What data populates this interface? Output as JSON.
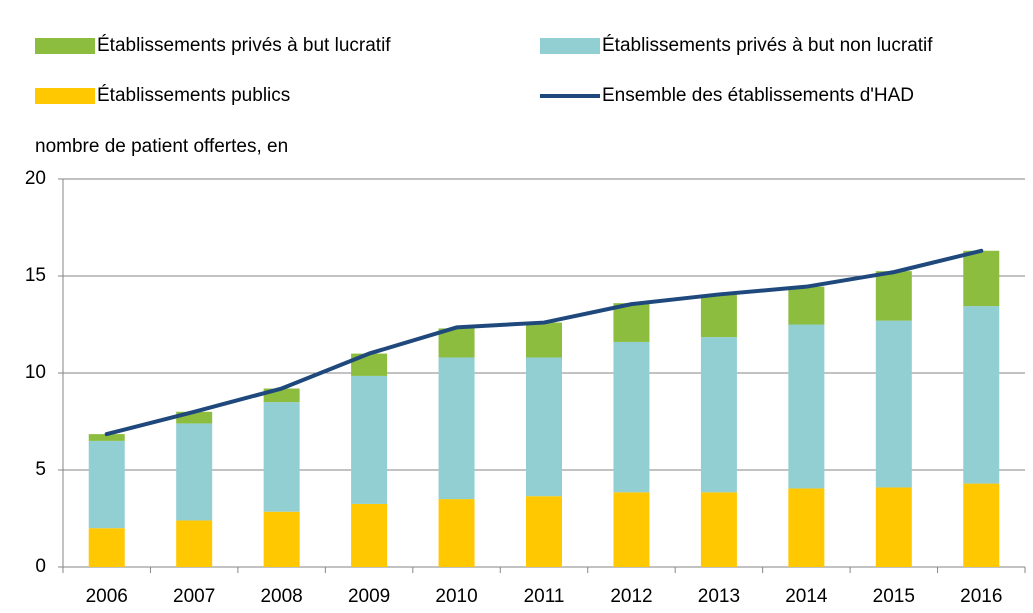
{
  "chart_data": {
    "type": "bar",
    "stacked": true,
    "y_label": "nombre de patient offertes, en",
    "categories": [
      "2006",
      "2007",
      "2008",
      "2009",
      "2010",
      "2011",
      "2012",
      "2013",
      "2014",
      "2015",
      "2016"
    ],
    "series": [
      {
        "name": "Établissements privés à but lucratif",
        "type": "bar",
        "color": "#8cbd3f",
        "values": [
          0.35,
          0.6,
          0.7,
          1.15,
          1.5,
          1.8,
          2.0,
          2.2,
          1.95,
          2.55,
          2.85
        ]
      },
      {
        "name": "Établissements privés à but non lucratif",
        "type": "bar",
        "color": "#92cfd3",
        "values": [
          4.5,
          5.0,
          5.65,
          6.6,
          7.3,
          7.15,
          7.75,
          8.0,
          8.45,
          8.6,
          9.15
        ]
      },
      {
        "name": "Établissements publics",
        "type": "bar",
        "color": "#ffc800",
        "values": [
          2.0,
          2.4,
          2.85,
          3.25,
          3.5,
          3.65,
          3.85,
          3.85,
          4.05,
          4.1,
          4.3
        ]
      },
      {
        "name": "Ensemble des établissements d'HAD",
        "type": "line",
        "color": "#1f497d",
        "values": [
          6.85,
          8.0,
          9.2,
          11.0,
          12.35,
          12.6,
          13.55,
          14.05,
          14.45,
          15.2,
          16.3
        ]
      }
    ],
    "ylim": [
      0,
      20
    ],
    "yticks": [
      0,
      5,
      10,
      15,
      20
    ],
    "grid": true,
    "legend": "top"
  }
}
